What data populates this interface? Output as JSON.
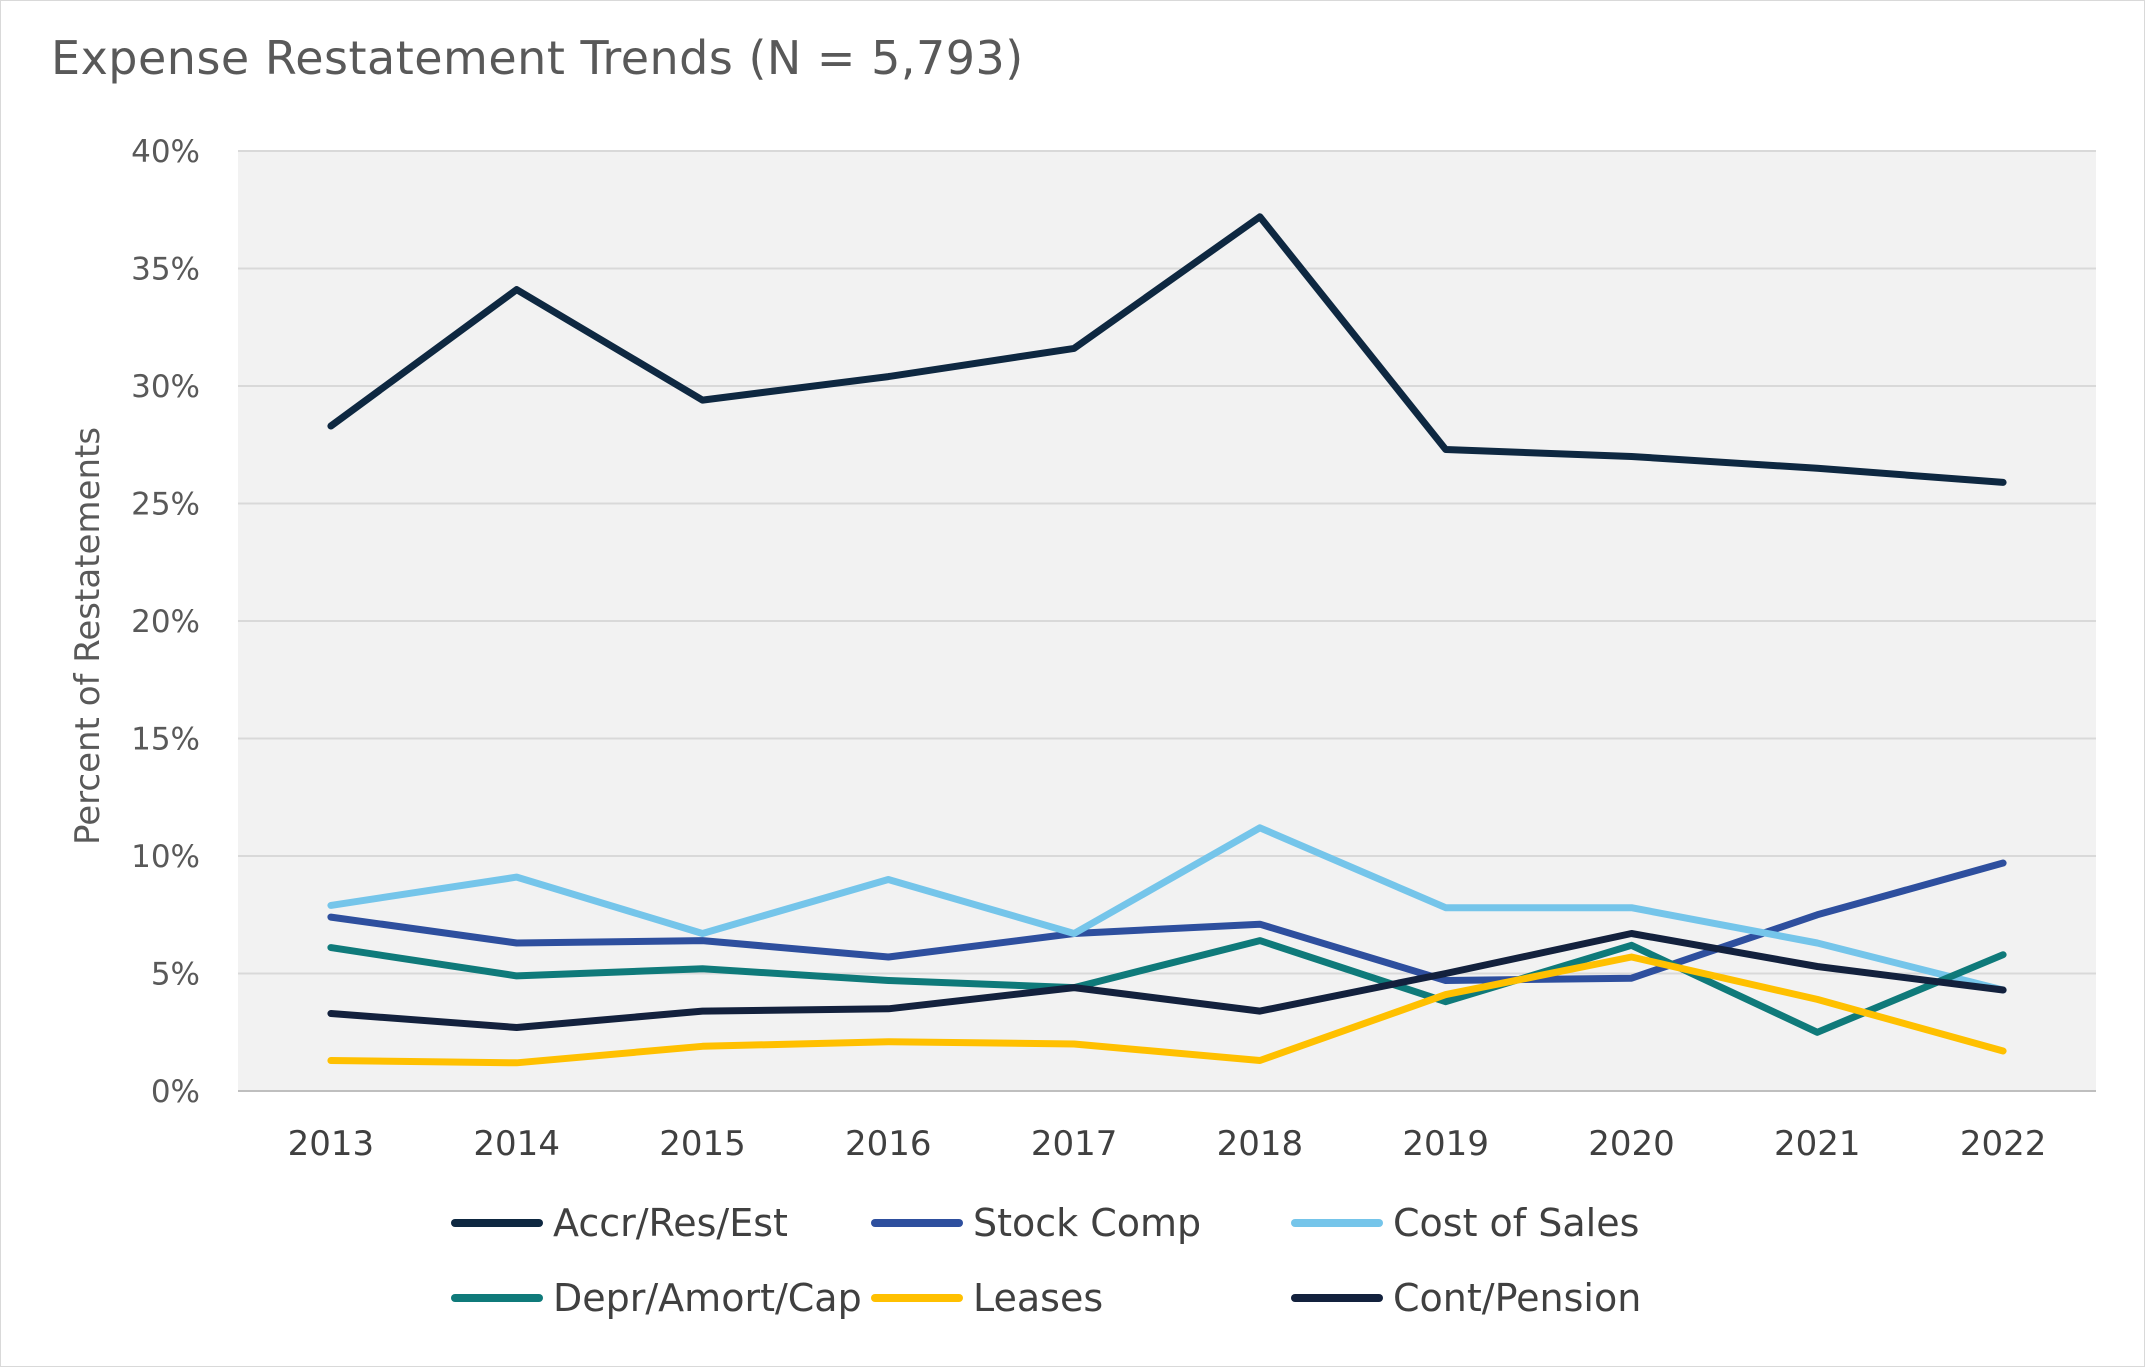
{
  "chart_data": {
    "type": "line",
    "title": "Expense Restatement Trends (N = 5,793)",
    "xlabel": "",
    "ylabel": "Percent of Restatements",
    "ylim": [
      0,
      0.4
    ],
    "ytick_step": 0.05,
    "ytick_labels": [
      "0%",
      "5%",
      "10%",
      "15%",
      "20%",
      "25%",
      "30%",
      "35%",
      "40%"
    ],
    "grid": "horizontal",
    "legend_position": "bottom",
    "plot_background": "#f2f2f2",
    "categories": [
      "2013",
      "2014",
      "2015",
      "2016",
      "2017",
      "2018",
      "2019",
      "2020",
      "2021",
      "2022"
    ],
    "series": [
      {
        "name": "Accr/Res/Est",
        "color": "#0e2841",
        "values": [
          0.283,
          0.341,
          0.294,
          0.304,
          0.316,
          0.372,
          0.273,
          0.27,
          0.265,
          0.259
        ]
      },
      {
        "name": "Stock Comp",
        "color": "#2e4f9e",
        "values": [
          0.074,
          0.063,
          0.064,
          0.057,
          0.067,
          0.071,
          0.047,
          0.048,
          0.075,
          0.097
        ]
      },
      {
        "name": "Cost of Sales",
        "color": "#75c5ea",
        "values": [
          0.079,
          0.091,
          0.067,
          0.09,
          0.067,
          0.112,
          0.078,
          0.078,
          0.063,
          0.043
        ]
      },
      {
        "name": "Depr/Amort/Cap",
        "color": "#0f7a7a",
        "values": [
          0.061,
          0.049,
          0.052,
          0.047,
          0.044,
          0.064,
          0.038,
          0.062,
          0.025,
          0.058
        ]
      },
      {
        "name": "Leases",
        "color": "#ffc000",
        "values": [
          0.013,
          0.012,
          0.019,
          0.021,
          0.02,
          0.013,
          0.041,
          0.057,
          0.039,
          0.017
        ]
      },
      {
        "name": "Cont/Pension",
        "color": "#13213d",
        "values": [
          0.033,
          0.027,
          0.034,
          0.035,
          0.044,
          0.034,
          0.05,
          0.067,
          0.053,
          0.043
        ]
      }
    ]
  }
}
